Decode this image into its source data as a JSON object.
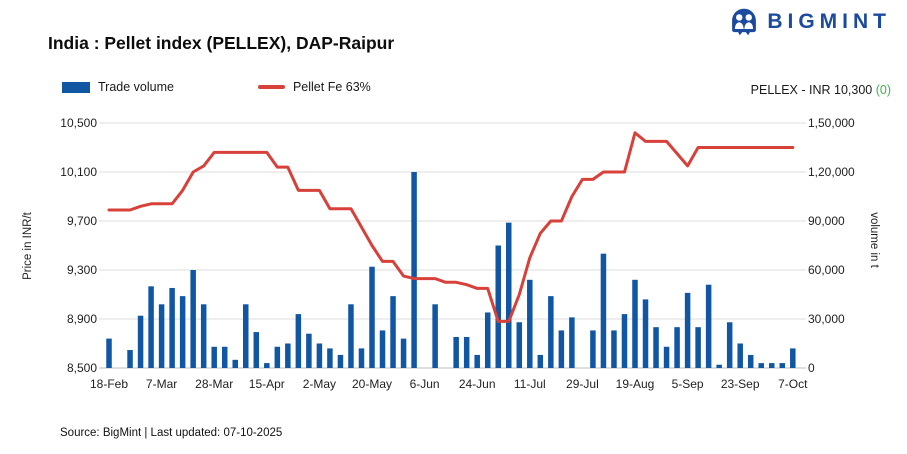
{
  "brand": {
    "name": "BIGMINT",
    "color": "#1b4a9e"
  },
  "title": "India : Pellet index (PELLEX), DAP-Raipur",
  "legend": [
    {
      "label": "Trade volume",
      "type": "bar",
      "color": "#1156a3"
    },
    {
      "label": "Pellet Fe 63%",
      "type": "line",
      "color": "#d8403a"
    }
  ],
  "price_badge": {
    "prefix": "PELLEX - INR 10,300",
    "change": " (0)",
    "change_color": "#3bb54a"
  },
  "footer": "Source: BigMint | Last updated: 07-10-2025",
  "chart_data": {
    "type": "bar+line",
    "title": "India : Pellet index (PELLEX), DAP-Raipur",
    "grid": true,
    "legend_position": "top-left",
    "x_labels": [
      "18-Feb",
      "7-Mar",
      "28-Mar",
      "15-Apr",
      "2-May",
      "20-May",
      "6-Jun",
      "24-Jun",
      "11-Jul",
      "29-Jul",
      "19-Aug",
      "5-Sep",
      "23-Sep",
      "7-Oct"
    ],
    "x_label_indices": [
      0,
      5,
      10,
      15,
      20,
      25,
      30,
      35,
      40,
      45,
      50,
      55,
      60,
      65
    ],
    "left_axis": {
      "title": "Price in INR/t",
      "min": 8500,
      "max": 10500,
      "ticks": [
        "10,500",
        "10,100",
        "9,700",
        "9,300",
        "8,900",
        "8,500"
      ]
    },
    "right_axis": {
      "title": "volume in t",
      "min": 0,
      "max": 150000,
      "ticks": [
        "1,50,000",
        "1,20,000",
        "90,000",
        "60,000",
        "30,000",
        "0"
      ]
    },
    "series": [
      {
        "name": "Trade volume",
        "type": "bar",
        "axis": "right",
        "color": "#1156a3",
        "values": [
          18000,
          0,
          11000,
          32000,
          50000,
          39000,
          49000,
          44000,
          60000,
          39000,
          13000,
          13000,
          5000,
          39000,
          22000,
          3000,
          13000,
          15000,
          33000,
          21000,
          15000,
          12000,
          8000,
          39000,
          12000,
          62000,
          23000,
          44000,
          18000,
          120000,
          0,
          39000,
          0,
          19000,
          19000,
          8000,
          34000,
          75000,
          89000,
          28000,
          54000,
          8000,
          44000,
          23000,
          31000,
          0,
          23000,
          70000,
          23000,
          33000,
          54000,
          42000,
          25000,
          13000,
          25000,
          46000,
          25000,
          51000,
          2000,
          28000,
          15000,
          8000,
          3000,
          3000,
          3000,
          12000
        ]
      },
      {
        "name": "Pellet Fe 63%",
        "type": "line",
        "axis": "left",
        "color": "#d8403a",
        "values": [
          9790,
          9790,
          9790,
          9820,
          9840,
          9840,
          9840,
          9950,
          10100,
          10150,
          10260,
          10260,
          10260,
          10260,
          10260,
          10260,
          10140,
          10140,
          9950,
          9950,
          9950,
          9800,
          9800,
          9800,
          9650,
          9500,
          9370,
          9370,
          9250,
          9230,
          9230,
          9230,
          9200,
          9200,
          9180,
          9150,
          9150,
          8880,
          8880,
          9100,
          9400,
          9600,
          9700,
          9700,
          9900,
          10040,
          10040,
          10100,
          10100,
          10100,
          10420,
          10350,
          10350,
          10350,
          10250,
          10150,
          10300,
          10300,
          10300,
          10300,
          10300,
          10300,
          10300,
          10300,
          10300,
          10300
        ]
      }
    ]
  }
}
